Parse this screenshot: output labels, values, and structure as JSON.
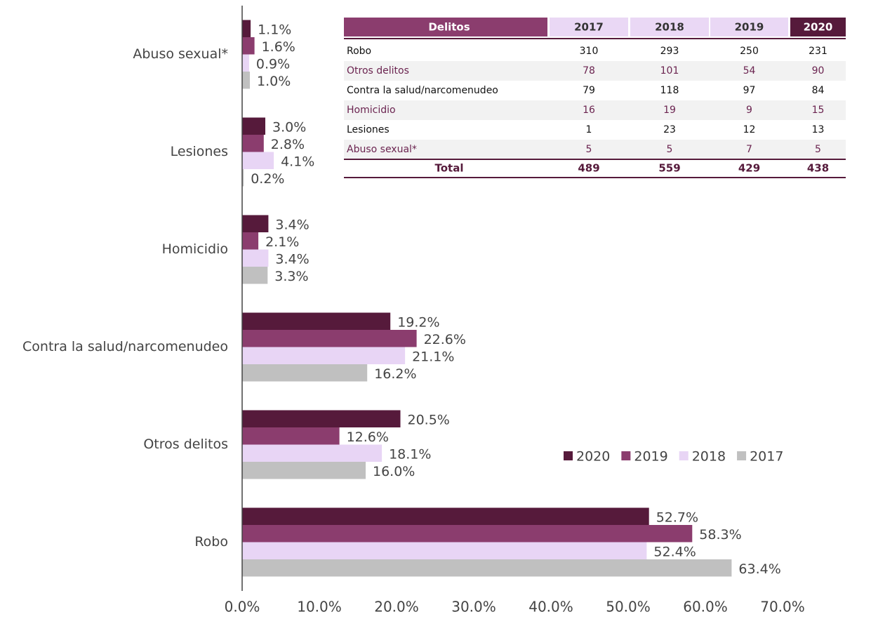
{
  "chart_data": {
    "type": "hbar",
    "categories": [
      "Abuso sexual*",
      "Lesiones",
      "Homicidio",
      "Contra la salud/narcomenudeo",
      "Otros delitos",
      "Robo"
    ],
    "series": [
      {
        "name": "2020",
        "color": "#561a3b",
        "values": [
          1.1,
          3.0,
          3.4,
          19.2,
          20.5,
          52.7
        ],
        "value_labels": [
          "1.1%",
          "3.0%",
          "3.4%",
          "19.2%",
          "20.5%",
          "52.7%"
        ]
      },
      {
        "name": "2019",
        "color": "#8b3d6e",
        "values": [
          1.6,
          2.8,
          2.1,
          22.6,
          12.6,
          58.3
        ],
        "value_labels": [
          "1.6%",
          "2.8%",
          "2.1%",
          "22.6%",
          "12.6%",
          "58.3%"
        ]
      },
      {
        "name": "2018",
        "color": "#e8d5f5",
        "values": [
          0.9,
          4.1,
          3.4,
          21.1,
          18.1,
          52.4
        ],
        "value_labels": [
          "0.9%",
          "4.1%",
          "3.4%",
          "21.1%",
          "18.1%",
          "52.4%"
        ]
      },
      {
        "name": "2017",
        "color": "#c0c0c0",
        "values": [
          1.0,
          0.2,
          3.3,
          16.2,
          16.0,
          63.4
        ],
        "value_labels": [
          "1.0%",
          "0.2%",
          "3.3%",
          "16.2%",
          "16.0%",
          "63.4%"
        ]
      }
    ],
    "xlim": [
      0,
      70
    ],
    "xticks": [
      {
        "value": 0,
        "label": "0.0%"
      },
      {
        "value": 10,
        "label": "10.0%"
      },
      {
        "value": 20,
        "label": "20.0%"
      },
      {
        "value": 30,
        "label": "30.0%"
      },
      {
        "value": 40,
        "label": "40.0%"
      },
      {
        "value": 50,
        "label": "50.0%"
      },
      {
        "value": 60,
        "label": "60.0%"
      },
      {
        "value": 70,
        "label": "70.0%"
      }
    ],
    "legend": "right"
  },
  "table": {
    "header": [
      "Delitos",
      "2017",
      "2018",
      "2019",
      "2020"
    ],
    "rows": [
      [
        "Robo",
        310,
        293,
        250,
        231
      ],
      [
        "Otros delitos",
        78,
        101,
        54,
        90
      ],
      [
        "Contra la salud/narcomenudeo",
        79,
        118,
        97,
        84
      ],
      [
        "Homicidio",
        16,
        19,
        9,
        15
      ],
      [
        "Lesiones",
        1,
        23,
        12,
        13
      ],
      [
        "Abuso sexual*",
        5,
        5,
        7,
        5
      ]
    ],
    "total": [
      "Total",
      489,
      559,
      429,
      438
    ]
  }
}
